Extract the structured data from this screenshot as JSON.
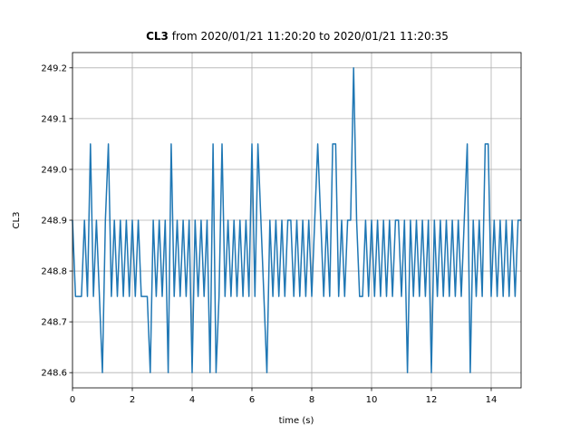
{
  "chart_data": {
    "type": "line",
    "title": {
      "bold": "CL3",
      "text": "from 2020/01/21 11:20:20 to 2020/01/21 11:20:35"
    },
    "xlabel": "time (s)",
    "ylabel": "CL3",
    "color": "#1f77b4",
    "grid": true,
    "xlim": [
      0,
      15
    ],
    "xticks": [
      0,
      2,
      4,
      6,
      8,
      10,
      12,
      14
    ],
    "ylim": [
      248.57,
      249.23
    ],
    "yticks": [
      248.6,
      248.7,
      248.8,
      248.9,
      {
        "value": 249,
        "label": "249.0"
      },
      249.1,
      249.2
    ],
    "x": [
      0,
      0.1,
      0.2,
      0.3,
      0.4,
      0.5,
      0.6,
      0.7,
      0.8,
      0.9,
      1,
      1.1,
      1.2,
      1.3,
      1.4,
      1.5,
      1.6,
      1.7,
      1.8,
      1.9,
      2,
      2.1,
      2.2,
      2.3,
      2.4,
      2.5,
      2.6,
      2.7,
      2.8,
      2.9,
      3,
      3.1,
      3.2,
      3.3,
      3.4,
      3.5,
      3.6,
      3.7,
      3.8,
      3.9,
      4,
      4.1,
      4.2,
      4.3,
      4.4,
      4.5,
      4.6,
      4.7,
      4.8,
      4.9,
      5,
      5.1,
      5.2,
      5.3,
      5.4,
      5.5,
      5.6,
      5.7,
      5.8,
      5.9,
      6,
      6.1,
      6.2,
      6.3,
      6.4,
      6.5,
      6.6,
      6.7,
      6.8,
      6.9,
      7,
      7.1,
      7.2,
      7.3,
      7.4,
      7.5,
      7.6,
      7.7,
      7.8,
      7.9,
      8,
      8.1,
      8.2,
      8.3,
      8.4,
      8.5,
      8.6,
      8.7,
      8.8,
      8.9,
      9,
      9.1,
      9.2,
      9.3,
      9.4,
      9.5,
      9.6,
      9.7,
      9.8,
      9.9,
      10,
      10.1,
      10.2,
      10.3,
      10.4,
      10.5,
      10.6,
      10.7,
      10.8,
      10.9,
      11,
      11.1,
      11.2,
      11.3,
      11.4,
      11.5,
      11.6,
      11.7,
      11.8,
      11.9,
      12,
      12.1,
      12.2,
      12.3,
      12.4,
      12.5,
      12.6,
      12.7,
      12.8,
      12.9,
      13,
      13.1,
      13.2,
      13.3,
      13.4,
      13.5,
      13.6,
      13.7,
      13.8,
      13.9,
      14,
      14.1,
      14.2,
      14.3,
      14.4,
      14.5,
      14.6,
      14.7,
      14.8,
      14.9,
      15
    ],
    "values": [
      248.9,
      248.75,
      248.75,
      248.75,
      248.9,
      248.75,
      249.05,
      248.75,
      248.9,
      248.75,
      248.6,
      248.9,
      249.05,
      248.75,
      248.9,
      248.75,
      248.9,
      248.75,
      248.9,
      248.75,
      248.9,
      248.75,
      248.9,
      248.75,
      248.75,
      248.75,
      248.6,
      248.9,
      248.75,
      248.9,
      248.75,
      248.9,
      248.6,
      249.05,
      248.75,
      248.9,
      248.75,
      248.9,
      248.75,
      248.9,
      248.6,
      248.9,
      248.75,
      248.9,
      248.75,
      248.9,
      248.6,
      249.05,
      248.6,
      248.75,
      249.05,
      248.75,
      248.9,
      248.75,
      248.9,
      248.75,
      248.9,
      248.75,
      248.9,
      248.75,
      249.05,
      248.75,
      249.05,
      248.9,
      248.75,
      248.6,
      248.9,
      248.75,
      248.9,
      248.75,
      248.9,
      248.75,
      248.9,
      248.9,
      248.75,
      248.9,
      248.75,
      248.9,
      248.75,
      248.9,
      248.75,
      248.9,
      249.05,
      248.9,
      248.75,
      248.9,
      248.75,
      249.05,
      249.05,
      248.75,
      248.9,
      248.75,
      248.9,
      248.9,
      249.2,
      248.9,
      248.75,
      248.75,
      248.9,
      248.75,
      248.9,
      248.75,
      248.9,
      248.75,
      248.9,
      248.75,
      248.9,
      248.75,
      248.9,
      248.9,
      248.75,
      248.9,
      248.6,
      248.9,
      248.75,
      248.9,
      248.75,
      248.9,
      248.75,
      248.9,
      248.6,
      248.9,
      248.75,
      248.9,
      248.75,
      248.9,
      248.75,
      248.9,
      248.75,
      248.9,
      248.75,
      248.9,
      249.05,
      248.6,
      248.9,
      248.75,
      248.9,
      248.75,
      249.05,
      249.05,
      248.75,
      248.9,
      248.75,
      248.9,
      248.75,
      248.9,
      248.75,
      248.9,
      248.75,
      248.9,
      248.9
    ]
  }
}
